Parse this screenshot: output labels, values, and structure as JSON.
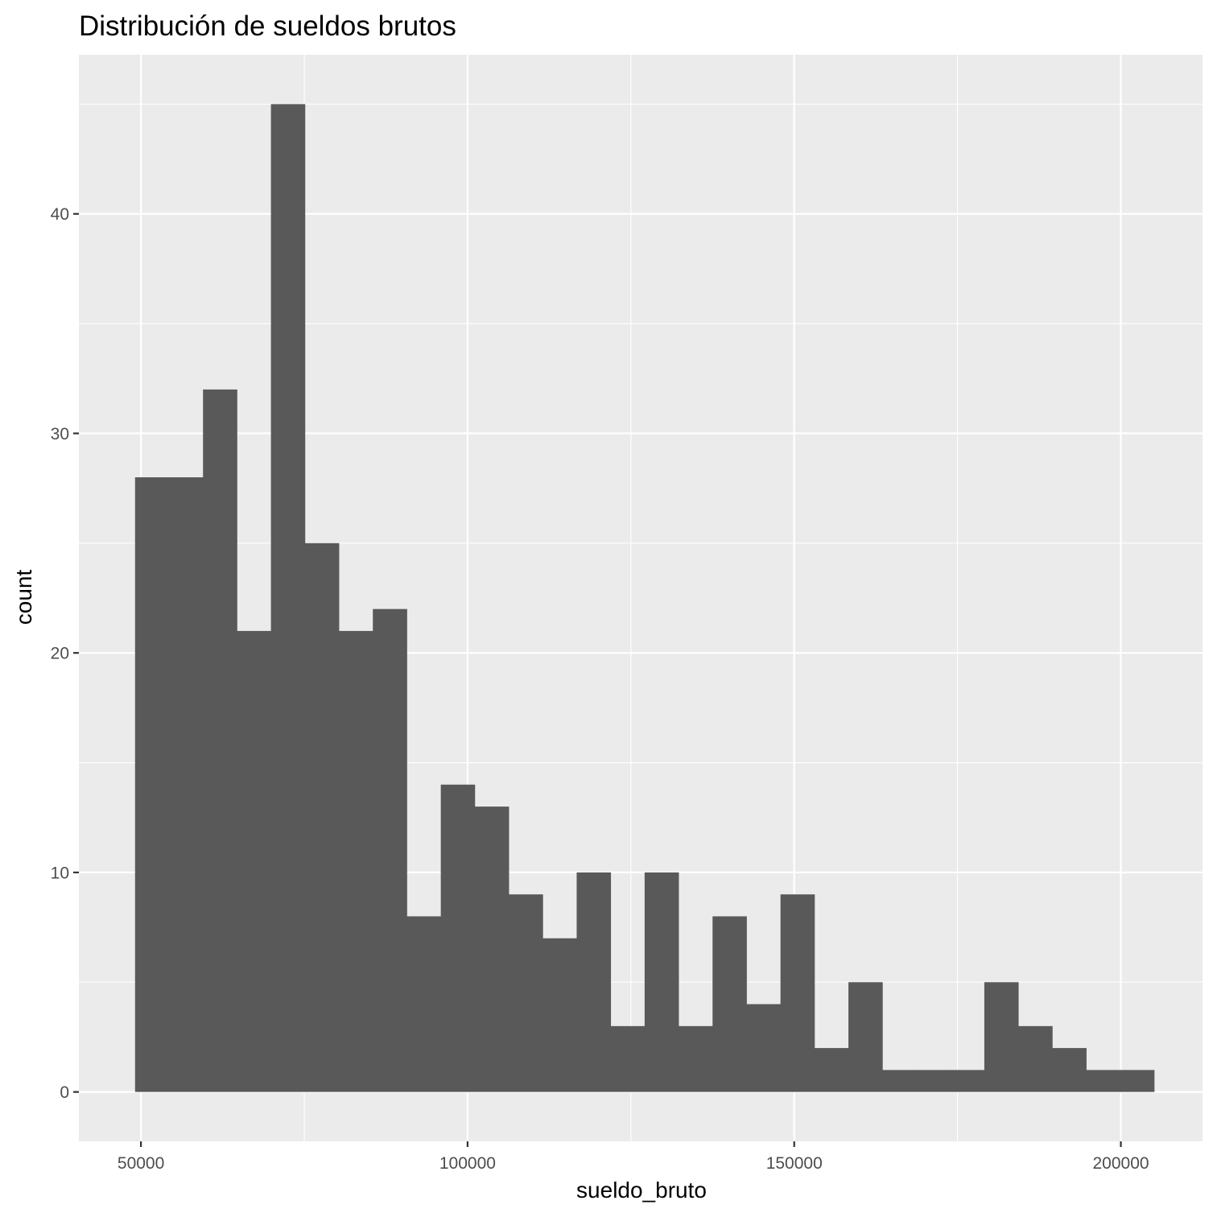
{
  "chart_data": {
    "type": "bar",
    "title": "Distribución de sueldos brutos",
    "xlabel": "sueldo_bruto",
    "ylabel": "count",
    "xlim": [
      40500,
      212500
    ],
    "ylim": [
      -2.25,
      47.25
    ],
    "x_ticks": [
      50000,
      100000,
      150000,
      200000
    ],
    "y_ticks": [
      0,
      10,
      20,
      30,
      40
    ],
    "x_ticks_minor": [
      75000,
      125000,
      175000
    ],
    "y_ticks_minor": [
      5,
      15,
      25,
      35,
      45
    ],
    "grid": true,
    "colors": {
      "bar": "#595959",
      "panel": "#ebebeb",
      "grid": "#ffffff",
      "tick_label": "#4d4d4d"
    },
    "bins": [
      {
        "x0": 49100,
        "x1": 54300,
        "count": 28
      },
      {
        "x0": 54300,
        "x1": 59500,
        "count": 28
      },
      {
        "x0": 59500,
        "x1": 64700,
        "count": 32
      },
      {
        "x0": 64700,
        "x1": 69900,
        "count": 21
      },
      {
        "x0": 69900,
        "x1": 75100,
        "count": 45
      },
      {
        "x0": 75100,
        "x1": 80300,
        "count": 25
      },
      {
        "x0": 80300,
        "x1": 85500,
        "count": 21
      },
      {
        "x0": 85500,
        "x1": 90700,
        "count": 22
      },
      {
        "x0": 90700,
        "x1": 95900,
        "count": 8
      },
      {
        "x0": 95900,
        "x1": 101100,
        "count": 14
      },
      {
        "x0": 101100,
        "x1": 106300,
        "count": 13
      },
      {
        "x0": 106300,
        "x1": 111500,
        "count": 9
      },
      {
        "x0": 111500,
        "x1": 116700,
        "count": 7
      },
      {
        "x0": 116700,
        "x1": 121900,
        "count": 10
      },
      {
        "x0": 121900,
        "x1": 127100,
        "count": 3
      },
      {
        "x0": 127100,
        "x1": 132300,
        "count": 10
      },
      {
        "x0": 132300,
        "x1": 137500,
        "count": 3
      },
      {
        "x0": 137500,
        "x1": 142700,
        "count": 8
      },
      {
        "x0": 142700,
        "x1": 147900,
        "count": 4
      },
      {
        "x0": 147900,
        "x1": 153100,
        "count": 9
      },
      {
        "x0": 153100,
        "x1": 158300,
        "count": 2
      },
      {
        "x0": 158300,
        "x1": 163500,
        "count": 5
      },
      {
        "x0": 163500,
        "x1": 168700,
        "count": 1
      },
      {
        "x0": 168700,
        "x1": 173900,
        "count": 1
      },
      {
        "x0": 173900,
        "x1": 179100,
        "count": 1
      },
      {
        "x0": 179100,
        "x1": 184300,
        "count": 5
      },
      {
        "x0": 184300,
        "x1": 189500,
        "count": 3
      },
      {
        "x0": 189500,
        "x1": 194700,
        "count": 2
      },
      {
        "x0": 194700,
        "x1": 199900,
        "count": 1
      },
      {
        "x0": 199900,
        "x1": 205100,
        "count": 1
      }
    ]
  }
}
